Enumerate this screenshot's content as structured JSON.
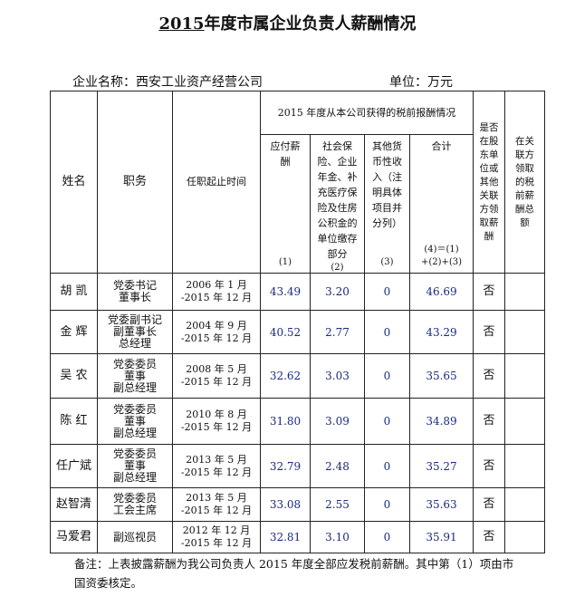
{
  "title": {
    "year": "2015",
    "text": "年度市属企业负责人薪酬情况"
  },
  "company": {
    "label": "企业名称：西安工业资产经营公司",
    "unit": "单位：万元"
  },
  "table": {
    "headers": {
      "name": "姓名",
      "position": "职务",
      "tenure": "任职起止时间",
      "group": "2015 年度从本公司获得的税前报酬情况",
      "other_unit": "是否在股东单位或其他关联方领取薪酬",
      "related": "在关联方领取的税前薪酬总额",
      "columns": [
        {
          "text": "应付薪酬",
          "code": "(1)"
        },
        {
          "text": "社会保险、企业年金、补充医疗保险及住房公积金的单位缴存部分",
          "code": "(2)"
        },
        {
          "text": "其他货币性收入（注明具体项目并分列）",
          "code": "(3)"
        },
        {
          "text": "合计",
          "code": "(4)＝(1)\n+(2)+(3)"
        }
      ]
    },
    "rows": [
      [
        "胡 凯",
        "党委书记\n董事长",
        "2006 年 1 月\n-2015 年 12 月",
        "43.49",
        "3.20",
        "0",
        "46.69",
        "否"
      ],
      [
        "金 辉",
        "党委副书记\n副董事长\n总经理",
        "2004 年 9 月\n-2015 年 12 月",
        "40.52",
        "2.77",
        "0",
        "43.29",
        "否"
      ],
      [
        "吴 农",
        "党委委员\n董事\n副总经理",
        "2008 年 5 月\n-2015 年 12 月",
        "32.62",
        "3.03",
        "0",
        "35.65",
        "否"
      ],
      [
        "陈 红",
        "党委委员\n董事\n副总经理",
        "2010 年 8 月\n-2015 年 12 月",
        "31.80",
        "3.09",
        "0",
        "34.89",
        "否"
      ],
      [
        "任广斌",
        "党委委员\n董事\n副总经理",
        "2013 年 5 月\n-2015 年 12 月",
        "32.79",
        "2.48",
        "0",
        "35.27",
        "否"
      ],
      [
        "赵智清",
        "党委委员\n工会主席",
        "2013 年 5 月\n-2015 年 12 月",
        "33.08",
        "2.55",
        "0",
        "35.63",
        "否"
      ],
      [
        "马爱君",
        "副巡视员",
        "2012 年 12 月\n-2015 年 12 月",
        "32.81",
        "3.10",
        "0",
        "35.91",
        "否"
      ]
    ]
  },
  "note": "备注：上表披露薪酬为我公司负责人 2015 年度全部应发税前薪酬。其中第（1）项由市国资委核定。"
}
